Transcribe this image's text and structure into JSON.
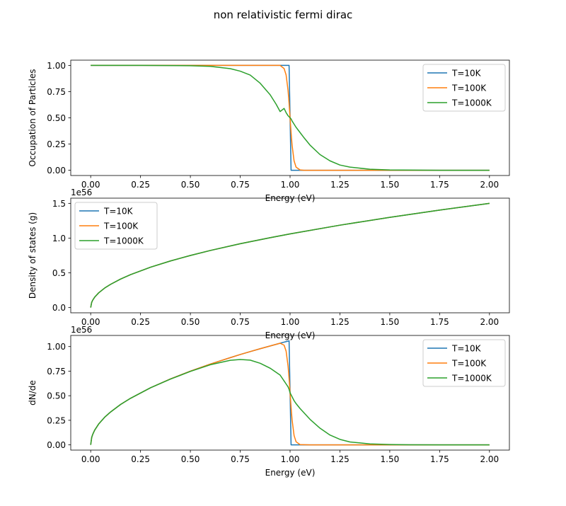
{
  "figure": {
    "suptitle": "non relativistic fermi dirac"
  },
  "chart_data": [
    {
      "type": "line",
      "title": "",
      "xlabel": "Energy (eV)",
      "ylabel": "Occupation of Particles",
      "offset_text": "",
      "xlim": [
        -0.1,
        2.1
      ],
      "ylim": [
        -0.05,
        1.05
      ],
      "xticks": [
        "0.00",
        "0.25",
        "0.50",
        "0.75",
        "1.00",
        "1.25",
        "1.50",
        "1.75",
        "2.00"
      ],
      "yticks": [
        "0.00",
        "0.25",
        "0.50",
        "0.75",
        "1.00"
      ],
      "legend_position": "upper right",
      "x": [
        0.0,
        0.25,
        0.5,
        0.6,
        0.7,
        0.75,
        0.8,
        0.85,
        0.9,
        0.93,
        0.95,
        0.97,
        0.98,
        0.99,
        0.995,
        1.0,
        1.005,
        1.01,
        1.02,
        1.03,
        1.05,
        1.07,
        1.1,
        1.15,
        1.2,
        1.25,
        1.3,
        1.4,
        1.5,
        1.75,
        2.0
      ],
      "series": [
        {
          "name": "T=10K",
          "color": "#1f77b4",
          "values": [
            1.0,
            1.0,
            1.0,
            1.0,
            1.0,
            1.0,
            1.0,
            1.0,
            1.0,
            1.0,
            1.0,
            1.0,
            1.0,
            1.0,
            1.0,
            0.5,
            0.0,
            0.0,
            0.0,
            0.0,
            0.0,
            0.0,
            0.0,
            0.0,
            0.0,
            0.0,
            0.0,
            0.0,
            0.0,
            0.0,
            0.0
          ]
        },
        {
          "name": "T=100K",
          "color": "#ff7f0e",
          "values": [
            1.0,
            1.0,
            1.0,
            1.0,
            1.0,
            1.0,
            1.0,
            1.0,
            1.0,
            1.0,
            1.0,
            0.97,
            0.91,
            0.76,
            0.64,
            0.5,
            0.36,
            0.24,
            0.09,
            0.03,
            0.003,
            0.0,
            0.0,
            0.0,
            0.0,
            0.0,
            0.0,
            0.0,
            0.0,
            0.0,
            0.0
          ]
        },
        {
          "name": "T=1000K",
          "color": "#2ca02c",
          "values": [
            1.0,
            1.0,
            0.997,
            0.991,
            0.969,
            0.945,
            0.908,
            0.83,
            0.72,
            0.63,
            0.56,
            0.59,
            0.55,
            0.52,
            0.51,
            0.5,
            0.49,
            0.47,
            0.44,
            0.41,
            0.36,
            0.31,
            0.24,
            0.15,
            0.09,
            0.05,
            0.03,
            0.01,
            0.003,
            0.0,
            0.0
          ]
        }
      ]
    },
    {
      "type": "line",
      "title": "",
      "xlabel": "Energy (eV)",
      "ylabel": "Density of states (g)",
      "offset_text": "1e56",
      "xlim": [
        -0.1,
        2.1
      ],
      "ylim": [
        -0.075,
        1.575
      ],
      "xticks": [
        "0.00",
        "0.25",
        "0.50",
        "0.75",
        "1.00",
        "1.25",
        "1.50",
        "1.75",
        "2.00"
      ],
      "yticks": [
        "0.0",
        "0.5",
        "1.0",
        "1.5"
      ],
      "legend_position": "upper left",
      "x": [
        0.0,
        0.005,
        0.01,
        0.02,
        0.04,
        0.07,
        0.1,
        0.15,
        0.2,
        0.3,
        0.4,
        0.5,
        0.6,
        0.75,
        0.9,
        1.0,
        1.25,
        1.5,
        1.75,
        2.0
      ],
      "series": [
        {
          "name": "T=10K",
          "color": "#1f77b4",
          "values": [
            0.0,
            0.075,
            0.106,
            0.15,
            0.212,
            0.281,
            0.335,
            0.411,
            0.474,
            0.581,
            0.671,
            0.75,
            0.822,
            0.919,
            1.006,
            1.061,
            1.186,
            1.299,
            1.403,
            1.5
          ]
        },
        {
          "name": "T=100K",
          "color": "#ff7f0e",
          "values": [
            0.0,
            0.075,
            0.106,
            0.15,
            0.212,
            0.281,
            0.335,
            0.411,
            0.474,
            0.581,
            0.671,
            0.75,
            0.822,
            0.919,
            1.006,
            1.061,
            1.186,
            1.299,
            1.403,
            1.5
          ]
        },
        {
          "name": "T=1000K",
          "color": "#2ca02c",
          "values": [
            0.0,
            0.075,
            0.106,
            0.15,
            0.212,
            0.281,
            0.335,
            0.411,
            0.474,
            0.581,
            0.671,
            0.75,
            0.822,
            0.919,
            1.006,
            1.061,
            1.186,
            1.299,
            1.403,
            1.5
          ]
        }
      ]
    },
    {
      "type": "line",
      "title": "",
      "xlabel": "Energy (eV)",
      "ylabel": "dN/de",
      "offset_text": "1e56",
      "xlim": [
        -0.1,
        2.1
      ],
      "ylim": [
        -0.053,
        1.113
      ],
      "xticks": [
        "0.00",
        "0.25",
        "0.50",
        "0.75",
        "1.00",
        "1.25",
        "1.50",
        "1.75",
        "2.00"
      ],
      "yticks": [
        "0.00",
        "0.25",
        "0.50",
        "0.75",
        "1.00"
      ],
      "legend_position": "upper right",
      "x": [
        0.0,
        0.005,
        0.01,
        0.02,
        0.04,
        0.07,
        0.1,
        0.15,
        0.2,
        0.3,
        0.4,
        0.5,
        0.6,
        0.7,
        0.75,
        0.8,
        0.85,
        0.9,
        0.95,
        0.97,
        0.98,
        0.99,
        0.995,
        1.0,
        1.005,
        1.01,
        1.02,
        1.03,
        1.05,
        1.1,
        1.15,
        1.2,
        1.25,
        1.3,
        1.4,
        1.5,
        1.6,
        1.75,
        2.0
      ],
      "series": [
        {
          "name": "T=10K",
          "color": "#1f77b4",
          "values": [
            0.0,
            0.075,
            0.106,
            0.15,
            0.212,
            0.281,
            0.335,
            0.411,
            0.474,
            0.581,
            0.671,
            0.75,
            0.822,
            0.887,
            0.919,
            0.949,
            0.978,
            1.006,
            1.034,
            1.045,
            1.05,
            1.055,
            1.058,
            0.53,
            0.0,
            0.0,
            0.0,
            0.0,
            0.0,
            0.0,
            0.0,
            0.0,
            0.0,
            0.0,
            0.0,
            0.0,
            0.0,
            0.0,
            0.0
          ]
        },
        {
          "name": "T=100K",
          "color": "#ff7f0e",
          "values": [
            0.0,
            0.075,
            0.106,
            0.15,
            0.212,
            0.281,
            0.335,
            0.411,
            0.474,
            0.581,
            0.671,
            0.75,
            0.822,
            0.887,
            0.919,
            0.949,
            0.978,
            1.006,
            1.034,
            1.014,
            0.955,
            0.8,
            0.677,
            0.53,
            0.382,
            0.256,
            0.096,
            0.032,
            0.003,
            0.0,
            0.0,
            0.0,
            0.0,
            0.0,
            0.0,
            0.0,
            0.0,
            0.0,
            0.0
          ]
        },
        {
          "name": "T=1000K",
          "color": "#2ca02c",
          "values": [
            0.0,
            0.075,
            0.106,
            0.15,
            0.212,
            0.281,
            0.335,
            0.411,
            0.474,
            0.581,
            0.669,
            0.747,
            0.815,
            0.86,
            0.868,
            0.862,
            0.83,
            0.78,
            0.71,
            0.65,
            0.62,
            0.59,
            0.565,
            0.53,
            0.51,
            0.49,
            0.45,
            0.42,
            0.37,
            0.26,
            0.17,
            0.1,
            0.056,
            0.03,
            0.01,
            0.004,
            0.001,
            0.0,
            0.0
          ]
        }
      ]
    }
  ]
}
